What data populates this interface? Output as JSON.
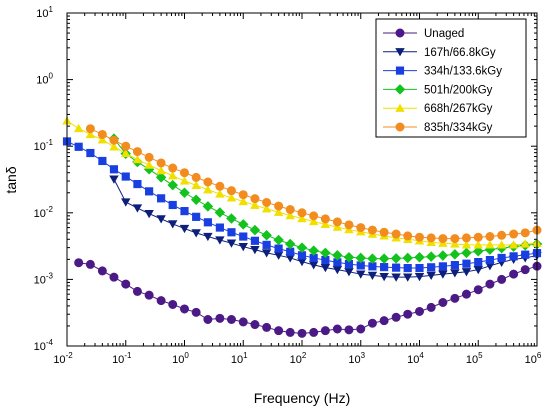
{
  "chart_data": {
    "type": "line",
    "title": "",
    "xlabel": "Frequency (Hz)",
    "ylabel": "tanδ",
    "x_scale": "log",
    "y_scale": "log",
    "xlim": [
      0.01,
      1000000
    ],
    "ylim": [
      0.0001,
      10
    ],
    "x_ticks": [
      {
        "base": "10",
        "exp": "-2",
        "value": 0.01
      },
      {
        "base": "10",
        "exp": "-1",
        "value": 0.1
      },
      {
        "base": "10",
        "exp": "0",
        "value": 1
      },
      {
        "base": "10",
        "exp": "1",
        "value": 10
      },
      {
        "base": "10",
        "exp": "2",
        "value": 100
      },
      {
        "base": "10",
        "exp": "3",
        "value": 1000
      },
      {
        "base": "10",
        "exp": "4",
        "value": 10000
      },
      {
        "base": "10",
        "exp": "5",
        "value": 100000
      },
      {
        "base": "10",
        "exp": "6",
        "value": 1000000
      }
    ],
    "y_ticks": [
      {
        "base": "10",
        "exp": "1",
        "value": 10
      },
      {
        "base": "10",
        "exp": "0",
        "value": 1
      },
      {
        "base": "10",
        "exp": "-1",
        "value": 0.1
      },
      {
        "base": "10",
        "exp": "-2",
        "value": 0.01
      },
      {
        "base": "10",
        "exp": "-3",
        "value": 0.001
      },
      {
        "base": "10",
        "exp": "-4",
        "value": 0.0001
      }
    ],
    "grid": false,
    "legend_position": "top-right",
    "series": [
      {
        "name": "Unaged",
        "color": "#4b1a86",
        "marker": "circle",
        "points": [
          [
            0.0158,
            0.00178
          ],
          [
            0.025,
            0.00168
          ],
          [
            0.04,
            0.00134
          ],
          [
            0.063,
            0.00108
          ],
          [
            0.1,
            0.00085
          ],
          [
            0.158,
            0.00066
          ],
          [
            0.25,
            0.00058
          ],
          [
            0.4,
            0.00048
          ],
          [
            0.63,
            0.00042
          ],
          [
            1.0,
            0.00036
          ],
          [
            1.58,
            0.00032
          ],
          [
            2.5,
            0.00025
          ],
          [
            4.0,
            0.00026
          ],
          [
            6.3,
            0.00025
          ],
          [
            10,
            0.00023
          ],
          [
            15.8,
            0.00021
          ],
          [
            25,
            0.00019
          ],
          [
            40,
            0.00017
          ],
          [
            63,
            0.00016
          ],
          [
            100,
            0.000155
          ],
          [
            158,
            0.00016
          ],
          [
            250,
            0.00017
          ],
          [
            400,
            0.00018
          ],
          [
            630,
            0.000175
          ],
          [
            1000,
            0.00018
          ],
          [
            1580,
            0.00022
          ],
          [
            2500,
            0.00024
          ],
          [
            4000,
            0.00027
          ],
          [
            6300,
            0.0003
          ],
          [
            10000,
            0.00033
          ],
          [
            15800,
            0.00038
          ],
          [
            25000,
            0.00045
          ],
          [
            40000,
            0.00052
          ],
          [
            63000,
            0.0006
          ],
          [
            100000,
            0.0007
          ],
          [
            158000,
            0.00085
          ],
          [
            250000,
            0.001
          ],
          [
            400000,
            0.0012
          ],
          [
            630000,
            0.0014
          ],
          [
            1000000,
            0.00158
          ]
        ]
      },
      {
        "name": "167h/66.8kGy",
        "color": "#0c1f7a",
        "marker": "triangle-down",
        "points": [
          [
            0.063,
            0.032
          ],
          [
            0.1,
            0.0145
          ],
          [
            0.158,
            0.0118
          ],
          [
            0.25,
            0.0097
          ],
          [
            0.4,
            0.0081
          ],
          [
            0.63,
            0.0068
          ],
          [
            1.0,
            0.0058
          ],
          [
            1.58,
            0.005
          ],
          [
            2.5,
            0.0044
          ],
          [
            4.0,
            0.0039
          ],
          [
            6.3,
            0.0035
          ],
          [
            10,
            0.0031
          ],
          [
            15.8,
            0.0028
          ],
          [
            25,
            0.0025
          ],
          [
            40,
            0.0023
          ],
          [
            63,
            0.0021
          ],
          [
            100,
            0.00185
          ],
          [
            158,
            0.00165
          ],
          [
            250,
            0.0015
          ],
          [
            400,
            0.0014
          ],
          [
            630,
            0.0013
          ],
          [
            1000,
            0.0012
          ],
          [
            1580,
            0.00115
          ],
          [
            2500,
            0.0011
          ],
          [
            4000,
            0.00108
          ],
          [
            6300,
            0.00108
          ],
          [
            10000,
            0.0011
          ],
          [
            15800,
            0.00115
          ],
          [
            25000,
            0.0012
          ],
          [
            40000,
            0.00125
          ],
          [
            63000,
            0.0013
          ],
          [
            100000,
            0.0014
          ],
          [
            158000,
            0.0016
          ],
          [
            250000,
            0.0018
          ],
          [
            400000,
            0.002
          ],
          [
            630000,
            0.0021
          ],
          [
            1000000,
            0.00228
          ]
        ]
      },
      {
        "name": "334h/133.6kGy",
        "color": "#1a3fe0",
        "marker": "square",
        "points": [
          [
            0.01,
            0.118
          ],
          [
            0.0158,
            0.098
          ],
          [
            0.025,
            0.079
          ],
          [
            0.04,
            0.06
          ],
          [
            0.063,
            0.045
          ],
          [
            0.1,
            0.035
          ],
          [
            0.158,
            0.027
          ],
          [
            0.25,
            0.021
          ],
          [
            0.4,
            0.0165
          ],
          [
            0.63,
            0.0131
          ],
          [
            1.0,
            0.0106
          ],
          [
            1.58,
            0.0087
          ],
          [
            2.5,
            0.0072
          ],
          [
            4.0,
            0.006
          ],
          [
            6.3,
            0.0051
          ],
          [
            10,
            0.0044
          ],
          [
            15.8,
            0.0038
          ],
          [
            25,
            0.0033
          ],
          [
            40,
            0.0029
          ],
          [
            63,
            0.0026
          ],
          [
            100,
            0.0023
          ],
          [
            158,
            0.0021
          ],
          [
            250,
            0.00195
          ],
          [
            400,
            0.0018
          ],
          [
            630,
            0.0017
          ],
          [
            1000,
            0.00162
          ],
          [
            1580,
            0.00157
          ],
          [
            2500,
            0.00153
          ],
          [
            4000,
            0.0015
          ],
          [
            6300,
            0.00148
          ],
          [
            10000,
            0.00148
          ],
          [
            15800,
            0.00152
          ],
          [
            25000,
            0.00157
          ],
          [
            40000,
            0.00164
          ],
          [
            63000,
            0.00172
          ],
          [
            100000,
            0.00182
          ],
          [
            158000,
            0.00195
          ],
          [
            250000,
            0.0021
          ],
          [
            400000,
            0.00222
          ],
          [
            630000,
            0.00235
          ],
          [
            1000000,
            0.00248
          ]
        ]
      },
      {
        "name": "501h/200kGy",
        "color": "#14c21e",
        "marker": "diamond",
        "points": [
          [
            0.063,
            0.13
          ],
          [
            0.1,
            0.077
          ],
          [
            0.158,
            0.058
          ],
          [
            0.25,
            0.045
          ],
          [
            0.4,
            0.034
          ],
          [
            0.63,
            0.026
          ],
          [
            1.0,
            0.02
          ],
          [
            1.58,
            0.0157
          ],
          [
            2.5,
            0.0125
          ],
          [
            4.0,
            0.0101
          ],
          [
            6.3,
            0.0082
          ],
          [
            10,
            0.0067
          ],
          [
            15.8,
            0.0055
          ],
          [
            25,
            0.0046
          ],
          [
            40,
            0.0039
          ],
          [
            63,
            0.0034
          ],
          [
            100,
            0.003
          ],
          [
            158,
            0.0027
          ],
          [
            250,
            0.0025
          ],
          [
            400,
            0.0023
          ],
          [
            630,
            0.00215
          ],
          [
            1000,
            0.0021
          ],
          [
            1580,
            0.00205
          ],
          [
            2500,
            0.00205
          ],
          [
            4000,
            0.00207
          ],
          [
            6300,
            0.0021
          ],
          [
            10000,
            0.00215
          ],
          [
            15800,
            0.0022
          ],
          [
            25000,
            0.00228
          ],
          [
            40000,
            0.00238
          ],
          [
            63000,
            0.0025
          ],
          [
            100000,
            0.00265
          ],
          [
            158000,
            0.0028
          ],
          [
            250000,
            0.00295
          ],
          [
            400000,
            0.0031
          ],
          [
            630000,
            0.00325
          ],
          [
            1000000,
            0.00338
          ]
        ]
      },
      {
        "name": "668h/267kGy",
        "color": "#f0e000",
        "marker": "triangle-up",
        "points": [
          [
            0.01,
            0.24
          ],
          [
            0.0158,
            0.185
          ],
          [
            0.025,
            0.15
          ],
          [
            0.04,
            0.125
          ],
          [
            0.063,
            0.098
          ],
          [
            0.1,
            0.078
          ],
          [
            0.158,
            0.063
          ],
          [
            0.25,
            0.052
          ],
          [
            0.4,
            0.043
          ],
          [
            0.63,
            0.036
          ],
          [
            1.0,
            0.03
          ],
          [
            1.58,
            0.0258
          ],
          [
            2.5,
            0.0222
          ],
          [
            4.0,
            0.0192
          ],
          [
            6.3,
            0.0168
          ],
          [
            10,
            0.0148
          ],
          [
            15.8,
            0.013
          ],
          [
            25,
            0.0115
          ],
          [
            40,
            0.0102
          ],
          [
            63,
            0.0091
          ],
          [
            100,
            0.0082
          ],
          [
            158,
            0.0074
          ],
          [
            250,
            0.0067
          ],
          [
            400,
            0.0061
          ],
          [
            630,
            0.0056
          ],
          [
            1000,
            0.0052
          ],
          [
            1580,
            0.0048
          ],
          [
            2500,
            0.0045
          ],
          [
            4000,
            0.0042
          ],
          [
            6300,
            0.004
          ],
          [
            10000,
            0.0038
          ],
          [
            15800,
            0.0036
          ],
          [
            25000,
            0.0035
          ],
          [
            40000,
            0.0034
          ],
          [
            63000,
            0.0033
          ],
          [
            100000,
            0.0033
          ],
          [
            158000,
            0.0033
          ],
          [
            250000,
            0.0033
          ],
          [
            400000,
            0.0033
          ],
          [
            630000,
            0.0034
          ],
          [
            1000000,
            0.0035
          ]
        ]
      },
      {
        "name": "835h/334kGy",
        "color": "#f28c1f",
        "marker": "circle",
        "points": [
          [
            0.025,
            0.183
          ],
          [
            0.04,
            0.15
          ],
          [
            0.063,
            0.123
          ],
          [
            0.1,
            0.1
          ],
          [
            0.158,
            0.083
          ],
          [
            0.25,
            0.068
          ],
          [
            0.4,
            0.056
          ],
          [
            0.63,
            0.047
          ],
          [
            1.0,
            0.04
          ],
          [
            1.58,
            0.034
          ],
          [
            2.5,
            0.029
          ],
          [
            4.0,
            0.025
          ],
          [
            6.3,
            0.0215
          ],
          [
            10,
            0.0187
          ],
          [
            15.8,
            0.0163
          ],
          [
            25,
            0.0143
          ],
          [
            40,
            0.0126
          ],
          [
            63,
            0.0112
          ],
          [
            100,
            0.01
          ],
          [
            158,
            0.009
          ],
          [
            250,
            0.0081
          ],
          [
            400,
            0.0073
          ],
          [
            630,
            0.0066
          ],
          [
            1000,
            0.006
          ],
          [
            1580,
            0.0055
          ],
          [
            2500,
            0.0051
          ],
          [
            4000,
            0.0048
          ],
          [
            6300,
            0.0045
          ],
          [
            10000,
            0.0043
          ],
          [
            15800,
            0.0042
          ],
          [
            25000,
            0.0041
          ],
          [
            40000,
            0.0041
          ],
          [
            63000,
            0.0042
          ],
          [
            100000,
            0.0043
          ],
          [
            158000,
            0.0044
          ],
          [
            250000,
            0.0046
          ],
          [
            400000,
            0.0048
          ],
          [
            630000,
            0.005
          ],
          [
            1000000,
            0.0055
          ]
        ]
      }
    ]
  }
}
